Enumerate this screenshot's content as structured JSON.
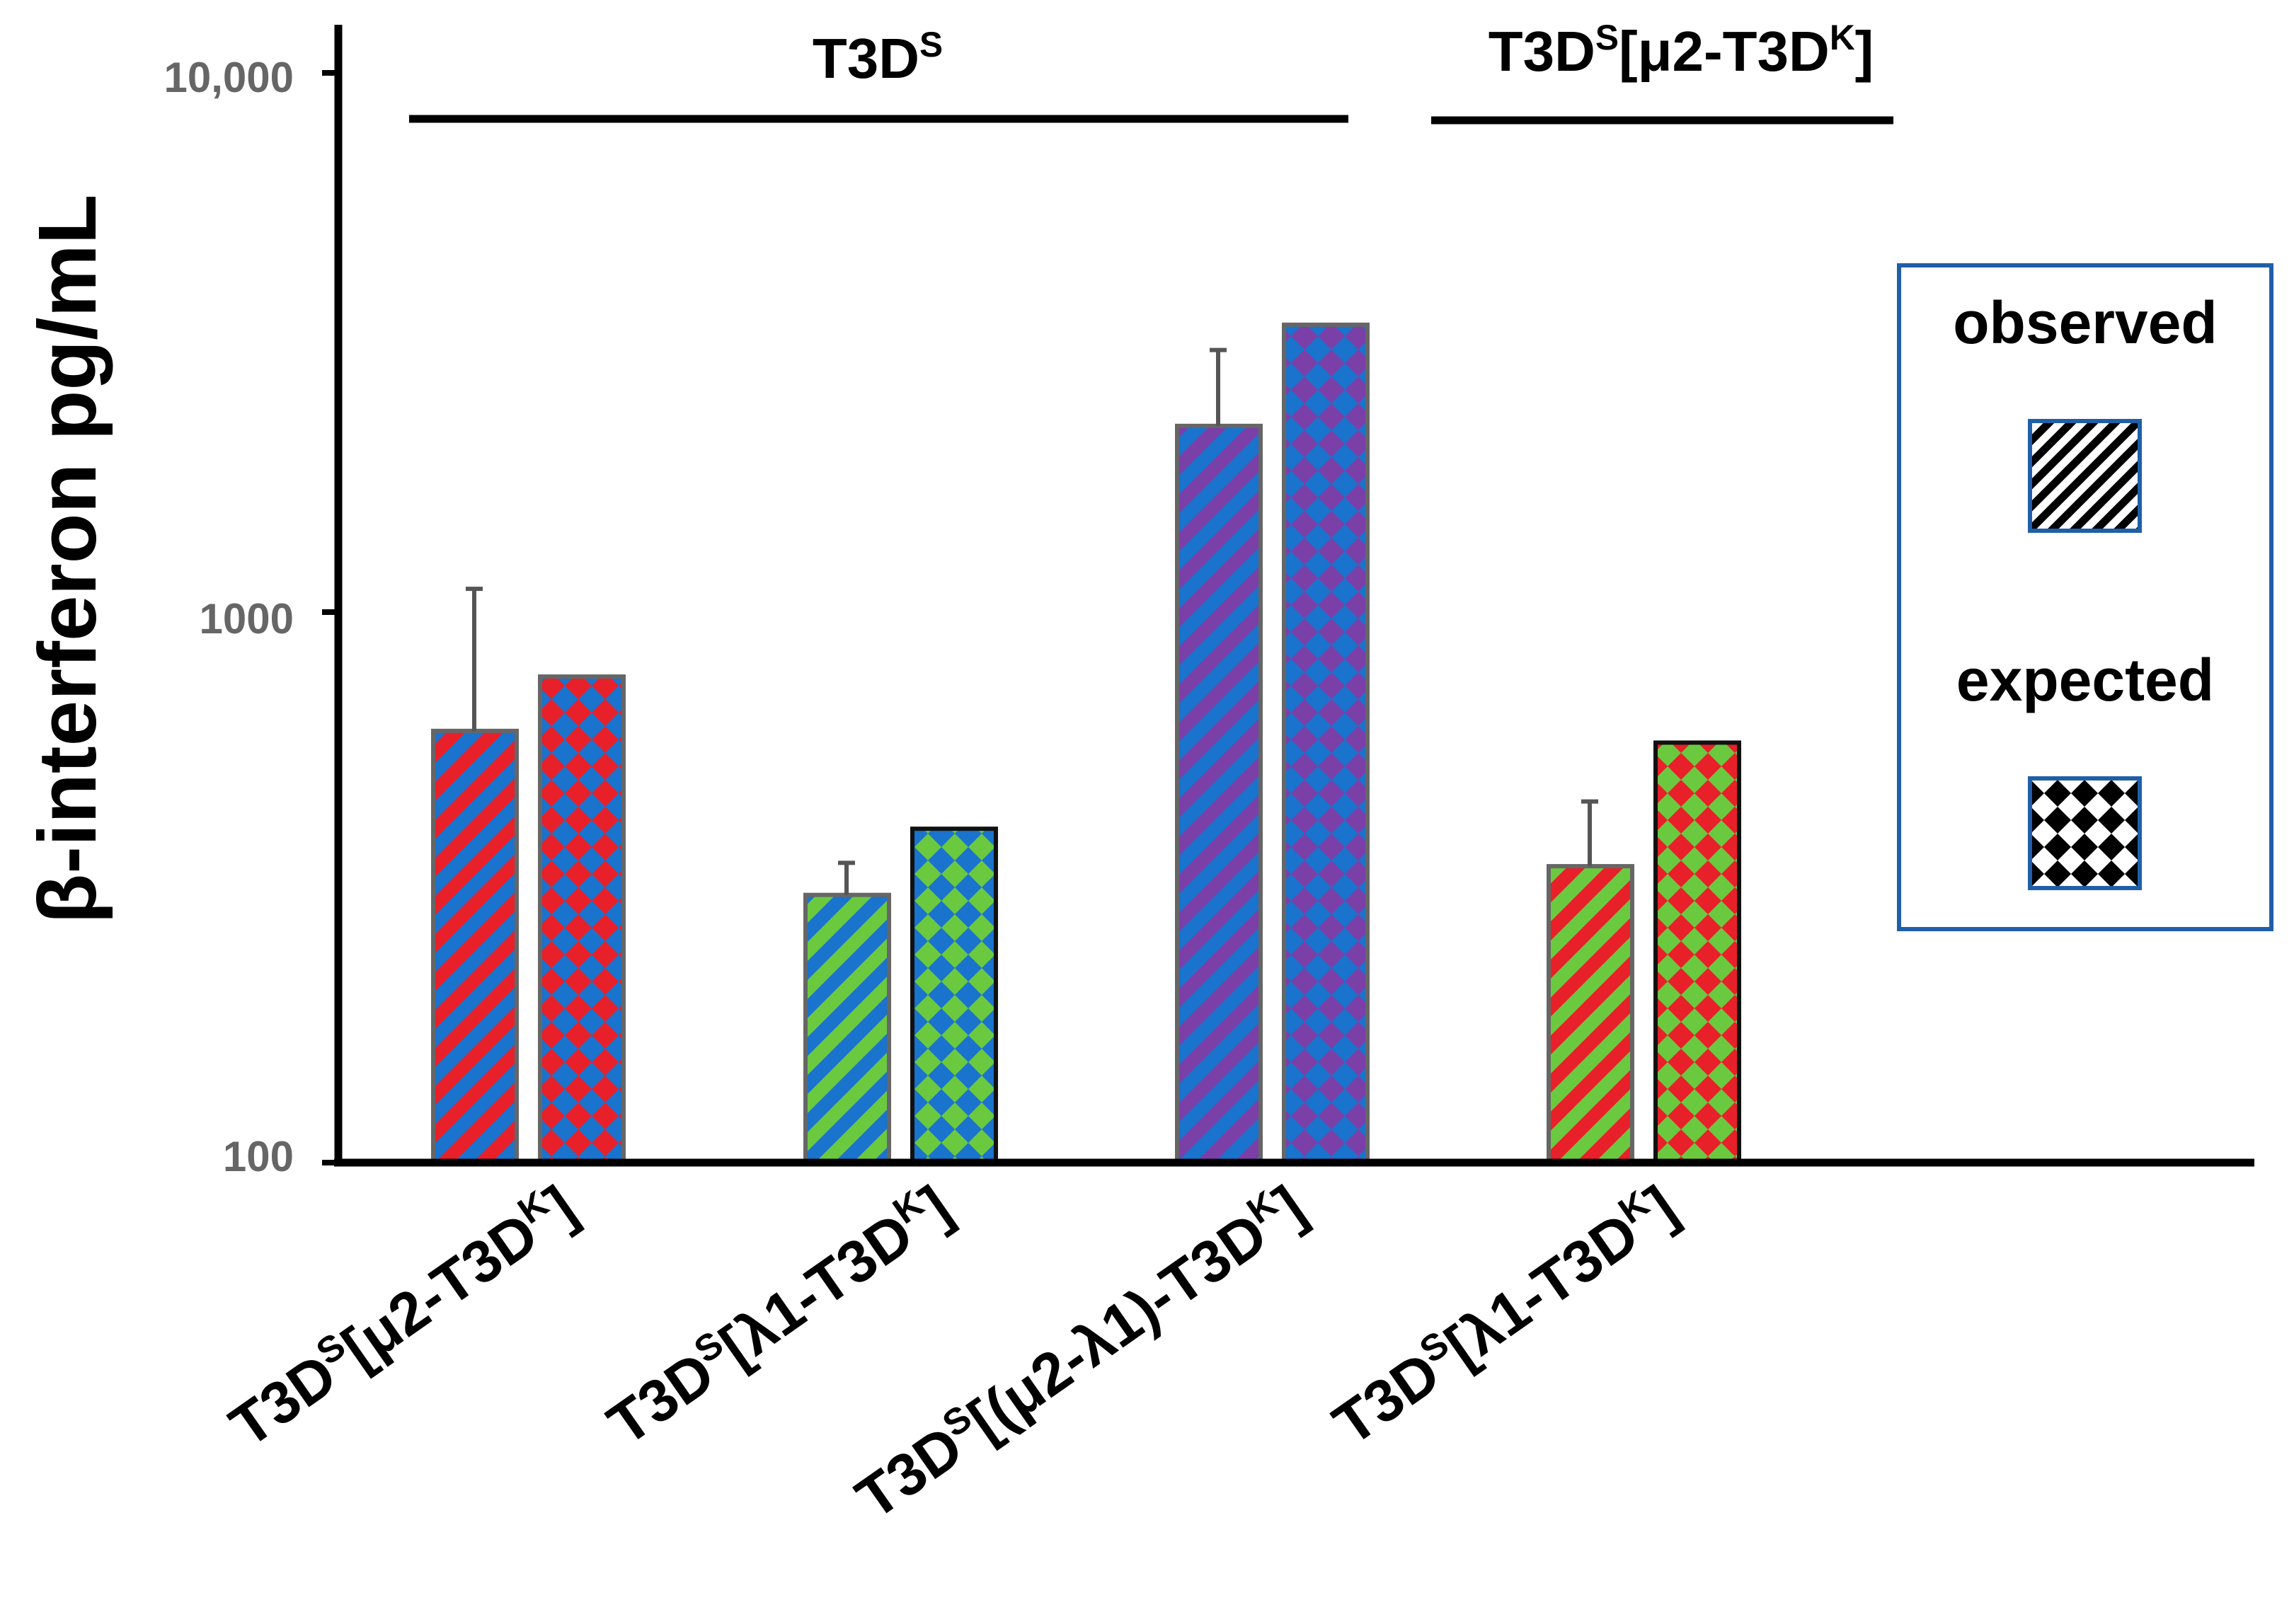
{
  "chart_data": {
    "type": "bar",
    "ylabel": "β-interferon pg/mL",
    "yscale": "log",
    "ylim": [
      100,
      10000
    ],
    "yticks": [
      {
        "value": 100,
        "label": "100"
      },
      {
        "value": 1000,
        "label": "1000"
      },
      {
        "value": 10000,
        "label": "10,000"
      }
    ],
    "groups": [
      {
        "label": "T3D",
        "sup": "S",
        "span": [
          0,
          2
        ]
      },
      {
        "label": "T3D",
        "sup": "S",
        "after": "[μ2-T3D",
        "sup2": "K",
        "end": "]",
        "span": [
          3,
          3
        ]
      }
    ],
    "categories": [
      {
        "pre": "T3D",
        "sup": "S",
        "mid": "[μ2-T3D",
        "sup2": "K",
        "end": "]"
      },
      {
        "pre": "T3D",
        "sup": "S",
        "mid": "[λ1-T3D",
        "sup2": "K",
        "end": "]"
      },
      {
        "pre": "T3D",
        "sup": "S",
        "mid": "[(μ2-λ1)-T3D",
        "sup2": "K",
        "end": "]"
      },
      {
        "pre": "T3D",
        "sup": "S",
        "mid": "[λ1-T3D",
        "sup2": "K",
        "end": "]"
      }
    ],
    "series": [
      {
        "name": "observed",
        "pattern": "stripes",
        "values": [
          620,
          310,
          2250,
          350
        ],
        "error": [
          510,
          45,
          850,
          110
        ]
      },
      {
        "name": "expected",
        "pattern": "diamonds",
        "values": [
          780,
          410,
          3450,
          590
        ]
      }
    ],
    "bar_colors": [
      {
        "observed": [
          "#1a73cc",
          "#e8202a"
        ],
        "expected": [
          "#1a73cc",
          "#e8202a"
        ]
      },
      {
        "observed": [
          "#1a73cc",
          "#6bc940"
        ],
        "expected": [
          "#1a73cc",
          "#6bc940"
        ]
      },
      {
        "observed": [
          "#1a73cc",
          "#7b3fa8"
        ],
        "expected": [
          "#1a73cc",
          "#7b3fa8"
        ]
      },
      {
        "observed": [
          "#6bc940",
          "#e8202a"
        ],
        "expected": [
          "#6bc940",
          "#e8202a"
        ]
      }
    ],
    "legend": {
      "position": "right",
      "entries": [
        {
          "label": "observed",
          "pattern": "stripes"
        },
        {
          "label": "expected",
          "pattern": "diamonds"
        }
      ],
      "border_color": "#1f5fa8"
    }
  }
}
